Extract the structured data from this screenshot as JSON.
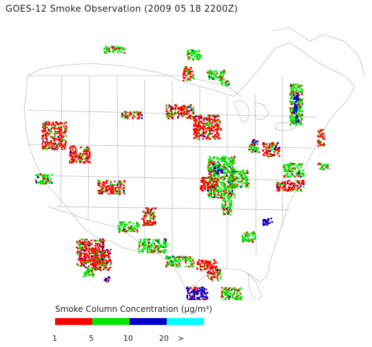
{
  "title": "GOES-12 Smoke Observation (2009 05 18  2200Z)",
  "legend": {
    "title": "Smoke Column Concentration (μg/m³)",
    "bins": [
      {
        "color": "#ff0000"
      },
      {
        "color": "#00e600"
      },
      {
        "color": "#0000c8"
      },
      {
        "color": "#00ffff"
      }
    ],
    "ticks": [
      "1",
      "5",
      "10",
      "20",
      ">"
    ]
  },
  "map": {
    "projection": "conus",
    "line_color": "#bbbbbb"
  }
}
